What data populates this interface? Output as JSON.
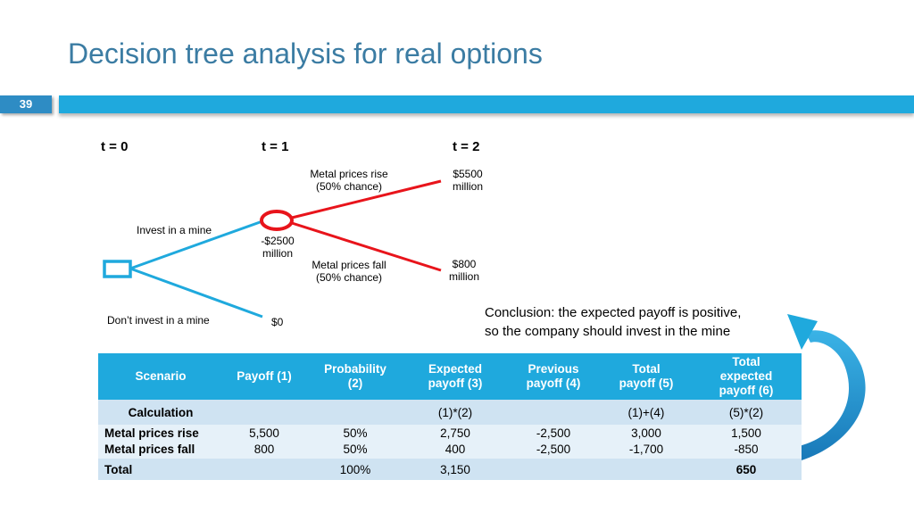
{
  "slide": {
    "title": "Decision tree analysis for real options",
    "number": "39"
  },
  "tree": {
    "t0": "t = 0",
    "t1": "t = 1",
    "t2": "t = 2",
    "invest": "Invest in a mine",
    "dont_invest": "Don’t invest in a mine",
    "cost_line1": "-$2500",
    "cost_line2": "million",
    "zero": "$0",
    "rise_line1": "Metal prices rise",
    "rise_line2": "(50% chance)",
    "fall_line1": "Metal prices fall",
    "fall_line2": "(50% chance)",
    "high_line1": "$5500",
    "high_line2": "million",
    "low_line1": "$800",
    "low_line2": "million"
  },
  "conclusion": {
    "line1": "Conclusion: the expected payoff is positive,",
    "line2": "so the company should invest in the mine"
  },
  "table": {
    "headers": [
      [
        "Scenario"
      ],
      [
        "Payoff (1)"
      ],
      [
        "Probability",
        "(2)"
      ],
      [
        "Expected",
        "payoff (3)"
      ],
      [
        "Previous",
        "payoff (4)"
      ],
      [
        "Total",
        "payoff (5)"
      ],
      [
        "Total",
        "expected",
        "payoff (6)"
      ]
    ],
    "calc": [
      "Calculation",
      "",
      "",
      "(1)*(2)",
      "",
      "(1)+(4)",
      "(5)*(2)"
    ],
    "rows": [
      [
        "Metal prices rise",
        "5,500",
        "50%",
        "2,750",
        "-2,500",
        "3,000",
        "1,500"
      ],
      [
        "Metal prices fall",
        "800",
        "50%",
        "400",
        "-2,500",
        "-1,700",
        "-850"
      ]
    ],
    "total": [
      "Total",
      "",
      "100%",
      "3,150",
      "",
      "",
      "650"
    ]
  },
  "colors": {
    "title": "#3b7ca3",
    "bar": "#1fa9dd",
    "invest_branch": "#1fa9dd",
    "price_branch": "#e8141b",
    "arrow": "#1f9ad6"
  }
}
